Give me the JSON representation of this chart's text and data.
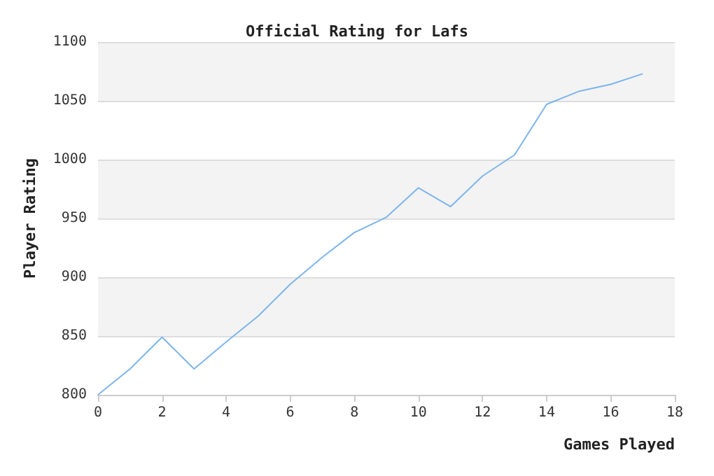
{
  "chart_data": {
    "type": "line",
    "title": "Official Rating for Lafs",
    "xlabel": "Games Played",
    "ylabel": "Player Rating",
    "x": [
      0,
      1,
      2,
      3,
      4,
      5,
      6,
      7,
      8,
      9,
      10,
      11,
      12,
      13,
      14,
      15,
      16,
      17
    ],
    "series": [
      {
        "color": "#7cb5ec",
        "values": [
          800,
          822,
          849,
          822,
          845,
          867,
          894,
          917,
          938,
          951,
          976,
          960,
          986,
          1004,
          1047,
          1058,
          1064,
          1073
        ]
      }
    ],
    "xlim": [
      0,
      18
    ],
    "xticks": [
      0,
      2,
      4,
      6,
      8,
      10,
      12,
      14,
      16,
      18
    ],
    "ylim": [
      800,
      1100
    ],
    "yticks": [
      800,
      850,
      900,
      950,
      1000,
      1050,
      1100
    ],
    "grid": "y",
    "marker": "none",
    "line_style": "solid"
  }
}
